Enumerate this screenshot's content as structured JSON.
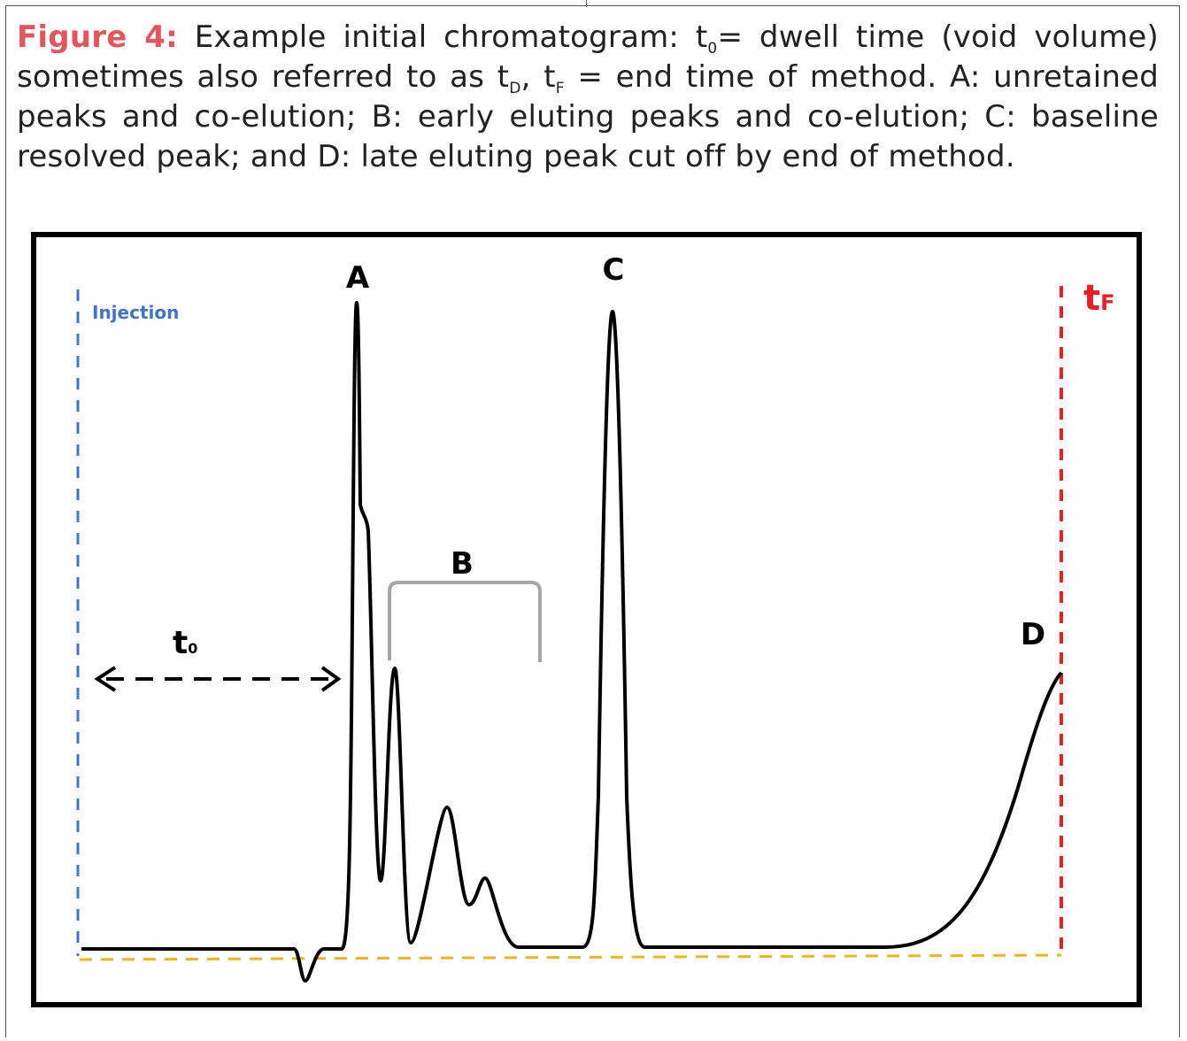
{
  "caption": {
    "figure_label": "Figure 4:",
    "part1": " Example initial chromatogram: t",
    "sub1": "0",
    "part2": "= dwell time (void volume) sometimes also referred to as t",
    "sub2": "D",
    "part3": ", t",
    "sub3": "F",
    "part4": " = end time of method. A: unretained peaks and co-elution; B: early eluting peaks and co-elution; C: baseline resolved peak; and D: late eluting peak cut off by end of method."
  },
  "diagram": {
    "injection_label": "Injection",
    "t0_label": "t",
    "t0_sub": "0",
    "tf_label": "t",
    "tf_sub": "F",
    "peak_labels": {
      "a": "A",
      "b": "B",
      "c": "C",
      "d": "D"
    }
  },
  "colors": {
    "figure_label": "#e0585d",
    "injection_line": "#4472c4",
    "end_line": "#e32227",
    "baseline_dashed": "#f0b323",
    "trace": "#000000",
    "bracket": "#a6a6a6"
  }
}
